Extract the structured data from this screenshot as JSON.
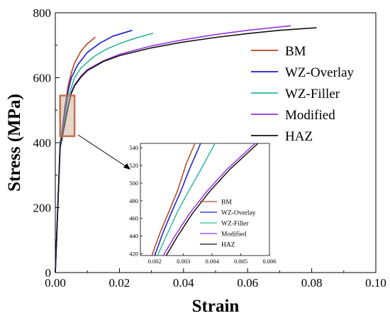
{
  "chart_data": [
    {
      "type": "line",
      "title": "",
      "xlabel": "Strain",
      "ylabel": "Stress (MPa)",
      "xlim": [
        0,
        0.1
      ],
      "ylim": [
        0,
        800
      ],
      "xticks": [
        "0.00",
        "0.02",
        "0.04",
        "0.06",
        "0.08",
        "0.10"
      ],
      "yticks": [
        "0",
        "200",
        "400",
        "600",
        "800"
      ],
      "grid": false,
      "legend_position": "right",
      "series": [
        {
          "name": "BM",
          "color": "#b5431a",
          "x": [
            0,
            0.0015,
            0.002,
            0.0025,
            0.003,
            0.004,
            0.005,
            0.006,
            0.008,
            0.01,
            0.0125
          ],
          "y": [
            0,
            400,
            430,
            468,
            510,
            575,
            615,
            645,
            682,
            705,
            725
          ]
        },
        {
          "name": "WZ-Overlay",
          "color": "#1a1acc",
          "x": [
            0,
            0.0015,
            0.002,
            0.0025,
            0.003,
            0.004,
            0.005,
            0.007,
            0.01,
            0.014,
            0.018,
            0.024
          ],
          "y": [
            0,
            395,
            425,
            460,
            500,
            560,
            600,
            640,
            678,
            707,
            728,
            746
          ]
        },
        {
          "name": "WZ-Filler",
          "color": "#2db89a",
          "x": [
            0,
            0.0015,
            0.002,
            0.0025,
            0.003,
            0.004,
            0.006,
            0.008,
            0.012,
            0.016,
            0.02,
            0.025,
            0.0305
          ],
          "y": [
            0,
            390,
            418,
            445,
            475,
            540,
            600,
            630,
            665,
            688,
            705,
            722,
            737
          ]
        },
        {
          "name": "Modified",
          "color": "#9933e0",
          "x": [
            0,
            0.0015,
            0.002,
            0.003,
            0.004,
            0.005,
            0.006,
            0.008,
            0.01,
            0.015,
            0.02,
            0.03,
            0.04,
            0.05,
            0.06,
            0.0735
          ],
          "y": [
            0,
            385,
            410,
            460,
            510,
            555,
            578,
            605,
            625,
            652,
            672,
            698,
            717,
            733,
            746,
            760
          ]
        },
        {
          "name": "HAZ",
          "color": "#111111",
          "x": [
            0,
            0.0015,
            0.002,
            0.003,
            0.004,
            0.005,
            0.006,
            0.008,
            0.01,
            0.015,
            0.02,
            0.03,
            0.04,
            0.05,
            0.06,
            0.07,
            0.0815
          ],
          "y": [
            0,
            385,
            410,
            460,
            510,
            552,
            575,
            602,
            622,
            650,
            668,
            692,
            710,
            724,
            736,
            746,
            754
          ]
        }
      ],
      "highlight_box": {
        "x_range": [
          0.0015,
          0.006
        ],
        "y_range": [
          420,
          545
        ]
      }
    },
    {
      "type": "line",
      "title": "",
      "xlabel": "",
      "ylabel": "",
      "xlim": [
        0.0015,
        0.006
      ],
      "ylim": [
        418,
        545
      ],
      "xticks": [
        "0.002",
        "0.003",
        "0.004",
        "0.005",
        "0.006"
      ],
      "yticks": [
        "420",
        "440",
        "460",
        "480",
        "500",
        "520",
        "540"
      ],
      "grid": false,
      "legend_position": "bottom-right",
      "series": [
        {
          "name": "BM",
          "color": "#b5431a",
          "x": [
            0.0019,
            0.0022,
            0.0025,
            0.0028,
            0.0031,
            0.0034
          ],
          "y": [
            418,
            445,
            468,
            492,
            522,
            545
          ]
        },
        {
          "name": "WZ-Overlay",
          "color": "#1a1acc",
          "x": [
            0.002,
            0.0023,
            0.0026,
            0.0029,
            0.0032,
            0.0036
          ],
          "y": [
            418,
            445,
            468,
            490,
            515,
            545
          ]
        },
        {
          "name": "WZ-Filler",
          "color": "#2db89a",
          "x": [
            0.0021,
            0.0024,
            0.0028,
            0.0032,
            0.0036,
            0.0041
          ],
          "y": [
            418,
            440,
            468,
            492,
            515,
            545
          ]
        },
        {
          "name": "Modified",
          "color": "#9933e0",
          "x": [
            0.0023,
            0.0027,
            0.0032,
            0.0038,
            0.0045,
            0.0055
          ],
          "y": [
            418,
            440,
            465,
            490,
            515,
            545
          ]
        },
        {
          "name": "HAZ",
          "color": "#111111",
          "x": [
            0.0024,
            0.0028,
            0.0033,
            0.0039,
            0.0046,
            0.0056
          ],
          "y": [
            418,
            440,
            465,
            490,
            515,
            545
          ]
        }
      ]
    }
  ]
}
